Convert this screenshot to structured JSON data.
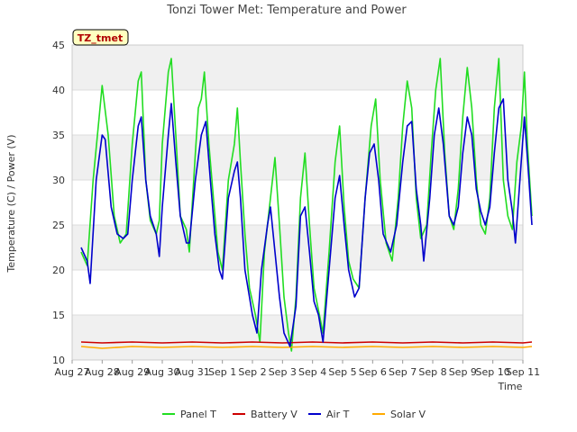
{
  "chart_data": {
    "type": "line",
    "title": "Tonzi Tower Met: Temperature and Power",
    "xlabel": "Time",
    "ylabel": "Temperature (C) / Power (V)",
    "badge": "TZ_tmet",
    "ylim": [
      10,
      45
    ],
    "yticks": [
      10,
      15,
      20,
      25,
      30,
      35,
      40,
      45
    ],
    "xlim": [
      0,
      15
    ],
    "xticks": [
      {
        "label": "Aug 27",
        "x": 0
      },
      {
        "label": "Aug 28",
        "x": 1
      },
      {
        "label": "Aug 29",
        "x": 2
      },
      {
        "label": "Aug 30",
        "x": 3
      },
      {
        "label": "Aug 31",
        "x": 4
      },
      {
        "label": "Sep 1",
        "x": 5
      },
      {
        "label": "Sep 2",
        "x": 6
      },
      {
        "label": "Sep 3",
        "x": 7
      },
      {
        "label": "Sep 4",
        "x": 8
      },
      {
        "label": "Sep 5",
        "x": 9
      },
      {
        "label": "Sep 6",
        "x": 10
      },
      {
        "label": "Sep 7",
        "x": 11
      },
      {
        "label": "Sep 8",
        "x": 12
      },
      {
        "label": "Sep 9",
        "x": 13
      },
      {
        "label": "Sep 10",
        "x": 14
      },
      {
        "label": "Sep 11",
        "x": 15
      }
    ],
    "series": [
      {
        "name": "Panel T",
        "color": "#22dd22",
        "points": [
          [
            0.3,
            22
          ],
          [
            0.5,
            20.5
          ],
          [
            0.7,
            30
          ],
          [
            0.9,
            37
          ],
          [
            1.0,
            40.5
          ],
          [
            1.2,
            35
          ],
          [
            1.4,
            26
          ],
          [
            1.6,
            23
          ],
          [
            1.8,
            24
          ],
          [
            2.0,
            34
          ],
          [
            2.2,
            41
          ],
          [
            2.3,
            42
          ],
          [
            2.45,
            30
          ],
          [
            2.6,
            25.5
          ],
          [
            2.8,
            24
          ],
          [
            2.9,
            25.5
          ],
          [
            3.0,
            34
          ],
          [
            3.2,
            42
          ],
          [
            3.3,
            43.5
          ],
          [
            3.45,
            35
          ],
          [
            3.6,
            26
          ],
          [
            3.8,
            24.5
          ],
          [
            3.9,
            22
          ],
          [
            4.1,
            33
          ],
          [
            4.2,
            38
          ],
          [
            4.3,
            39
          ],
          [
            4.4,
            42
          ],
          [
            4.55,
            34
          ],
          [
            4.7,
            28
          ],
          [
            4.85,
            22
          ],
          [
            5.0,
            20
          ],
          [
            5.2,
            30
          ],
          [
            5.4,
            34
          ],
          [
            5.5,
            38
          ],
          [
            5.6,
            32
          ],
          [
            5.75,
            24
          ],
          [
            5.9,
            18
          ],
          [
            6.1,
            15
          ],
          [
            6.25,
            12
          ],
          [
            6.4,
            22
          ],
          [
            6.6,
            28
          ],
          [
            6.75,
            32.5
          ],
          [
            6.9,
            25
          ],
          [
            7.05,
            17
          ],
          [
            7.2,
            13
          ],
          [
            7.3,
            11
          ],
          [
            7.45,
            17
          ],
          [
            7.6,
            28
          ],
          [
            7.75,
            33
          ],
          [
            7.9,
            25
          ],
          [
            8.05,
            18
          ],
          [
            8.2,
            15.5
          ],
          [
            8.35,
            13
          ],
          [
            8.55,
            22
          ],
          [
            8.75,
            32
          ],
          [
            8.9,
            36
          ],
          [
            9.05,
            27
          ],
          [
            9.2,
            21
          ],
          [
            9.35,
            19
          ],
          [
            9.55,
            18
          ],
          [
            9.75,
            28
          ],
          [
            9.95,
            36
          ],
          [
            10.1,
            39
          ],
          [
            10.25,
            30
          ],
          [
            10.45,
            23
          ],
          [
            10.65,
            21
          ],
          [
            10.85,
            28
          ],
          [
            11.0,
            36
          ],
          [
            11.15,
            41
          ],
          [
            11.3,
            38
          ],
          [
            11.45,
            28
          ],
          [
            11.6,
            23.5
          ],
          [
            11.8,
            25
          ],
          [
            11.95,
            33
          ],
          [
            12.1,
            40
          ],
          [
            12.25,
            43.5
          ],
          [
            12.4,
            33
          ],
          [
            12.55,
            26
          ],
          [
            12.7,
            24.5
          ],
          [
            12.85,
            29
          ],
          [
            13.0,
            37
          ],
          [
            13.15,
            42.5
          ],
          [
            13.3,
            38
          ],
          [
            13.45,
            30
          ],
          [
            13.6,
            25
          ],
          [
            13.75,
            24
          ],
          [
            13.9,
            28
          ],
          [
            14.05,
            38
          ],
          [
            14.2,
            43.5
          ],
          [
            14.35,
            30
          ],
          [
            14.5,
            26
          ],
          [
            14.65,
            24.5
          ],
          [
            14.8,
            32
          ],
          [
            14.95,
            36
          ],
          [
            15.05,
            42
          ],
          [
            15.15,
            34
          ],
          [
            15.3,
            26
          ]
        ]
      },
      {
        "name": "Battery V",
        "color": "#cc0000",
        "points": [
          [
            0.3,
            12
          ],
          [
            1,
            11.9
          ],
          [
            2,
            12
          ],
          [
            3,
            11.9
          ],
          [
            4,
            12
          ],
          [
            5,
            11.9
          ],
          [
            6,
            12
          ],
          [
            7,
            11.9
          ],
          [
            8,
            12
          ],
          [
            9,
            11.9
          ],
          [
            10,
            12
          ],
          [
            11,
            11.9
          ],
          [
            12,
            12
          ],
          [
            13,
            11.9
          ],
          [
            14,
            12
          ],
          [
            15,
            11.9
          ],
          [
            15.3,
            12
          ]
        ]
      },
      {
        "name": "Air T",
        "color": "#0000cc",
        "points": [
          [
            0.3,
            22.5
          ],
          [
            0.5,
            21
          ],
          [
            0.6,
            18.5
          ],
          [
            0.8,
            30
          ],
          [
            1.0,
            35
          ],
          [
            1.1,
            34.5
          ],
          [
            1.3,
            27
          ],
          [
            1.5,
            24
          ],
          [
            1.7,
            23.5
          ],
          [
            1.85,
            24
          ],
          [
            2.0,
            30
          ],
          [
            2.2,
            36
          ],
          [
            2.3,
            37
          ],
          [
            2.45,
            30
          ],
          [
            2.6,
            26
          ],
          [
            2.8,
            24
          ],
          [
            2.9,
            21.5
          ],
          [
            3.0,
            27
          ],
          [
            3.2,
            35
          ],
          [
            3.3,
            38.5
          ],
          [
            3.45,
            32
          ],
          [
            3.6,
            26
          ],
          [
            3.8,
            23
          ],
          [
            3.9,
            23
          ],
          [
            4.1,
            30
          ],
          [
            4.3,
            35
          ],
          [
            4.45,
            36.5
          ],
          [
            4.6,
            30
          ],
          [
            4.75,
            24
          ],
          [
            4.9,
            20
          ],
          [
            5.0,
            19
          ],
          [
            5.2,
            28
          ],
          [
            5.4,
            31
          ],
          [
            5.5,
            32
          ],
          [
            5.6,
            28
          ],
          [
            5.75,
            20
          ],
          [
            5.9,
            17
          ],
          [
            6.0,
            15
          ],
          [
            6.15,
            13
          ],
          [
            6.3,
            20
          ],
          [
            6.5,
            25
          ],
          [
            6.6,
            27
          ],
          [
            6.75,
            22
          ],
          [
            6.9,
            17
          ],
          [
            7.05,
            13
          ],
          [
            7.25,
            11.5
          ],
          [
            7.45,
            16
          ],
          [
            7.6,
            26
          ],
          [
            7.75,
            27
          ],
          [
            7.9,
            22
          ],
          [
            8.05,
            16.5
          ],
          [
            8.2,
            15
          ],
          [
            8.35,
            12
          ],
          [
            8.55,
            20
          ],
          [
            8.75,
            28
          ],
          [
            8.9,
            30.5
          ],
          [
            9.05,
            25
          ],
          [
            9.2,
            20
          ],
          [
            9.4,
            17
          ],
          [
            9.55,
            18
          ],
          [
            9.75,
            28
          ],
          [
            9.9,
            33
          ],
          [
            10.05,
            34
          ],
          [
            10.2,
            30
          ],
          [
            10.35,
            24
          ],
          [
            10.6,
            22
          ],
          [
            10.8,
            25
          ],
          [
            11.0,
            32
          ],
          [
            11.15,
            36
          ],
          [
            11.3,
            36.5
          ],
          [
            11.45,
            29
          ],
          [
            11.6,
            25
          ],
          [
            11.7,
            21
          ],
          [
            11.9,
            28
          ],
          [
            12.05,
            35
          ],
          [
            12.2,
            38
          ],
          [
            12.35,
            34
          ],
          [
            12.55,
            26
          ],
          [
            12.7,
            25
          ],
          [
            12.85,
            27
          ],
          [
            13.0,
            33
          ],
          [
            13.15,
            37
          ],
          [
            13.3,
            35
          ],
          [
            13.45,
            29
          ],
          [
            13.6,
            26.5
          ],
          [
            13.75,
            25
          ],
          [
            13.9,
            27
          ],
          [
            14.05,
            33
          ],
          [
            14.2,
            38
          ],
          [
            14.35,
            39
          ],
          [
            14.5,
            30
          ],
          [
            14.65,
            26.5
          ],
          [
            14.75,
            23
          ],
          [
            14.9,
            30
          ],
          [
            15.05,
            37
          ],
          [
            15.2,
            30
          ],
          [
            15.3,
            25
          ]
        ]
      },
      {
        "name": "Solar V",
        "color": "#ffaa00",
        "points": [
          [
            0.3,
            11.5
          ],
          [
            1,
            11.3
          ],
          [
            2,
            11.5
          ],
          [
            3,
            11.4
          ],
          [
            4,
            11.5
          ],
          [
            5,
            11.4
          ],
          [
            6,
            11.5
          ],
          [
            7,
            11.4
          ],
          [
            8,
            11.5
          ],
          [
            9,
            11.4
          ],
          [
            10,
            11.5
          ],
          [
            11,
            11.4
          ],
          [
            12,
            11.5
          ],
          [
            13,
            11.4
          ],
          [
            14,
            11.5
          ],
          [
            15,
            11.4
          ],
          [
            15.3,
            11.5
          ]
        ]
      }
    ],
    "legend_position": "bottom"
  }
}
